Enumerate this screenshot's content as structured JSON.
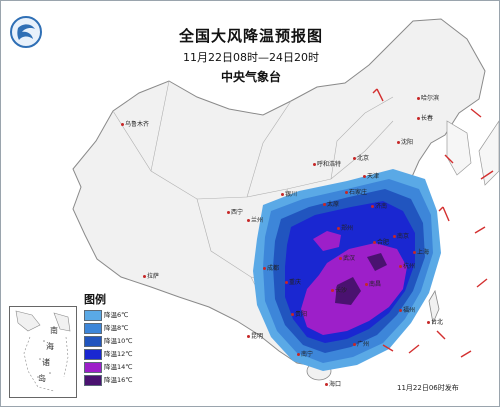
{
  "header": {
    "title": "全国大风降温预报图",
    "period": "11月22日08时—24日20时",
    "issuer": "中央气象台"
  },
  "logo": {
    "icon": "cma-logo-icon",
    "color": "#2f6fb5"
  },
  "map": {
    "icon": "china-base-map",
    "land_color": "#f2f2f2",
    "sea_color": "#ffffff",
    "cities": [
      "乌鲁木齐",
      "哈尔滨",
      "长春",
      "沈阳",
      "北京",
      "天津",
      "呼和浩特",
      "银川",
      "石家庄",
      "太原",
      "济南",
      "西宁",
      "兰州",
      "郑州",
      "拉萨",
      "成都",
      "重庆",
      "武汉",
      "合肥",
      "南京",
      "上海",
      "杭州",
      "长沙",
      "南昌",
      "贵阳",
      "昆明",
      "福州",
      "台北",
      "南宁",
      "广州",
      "海口"
    ],
    "wind_barbs": "red wind arrows"
  },
  "legend": {
    "title": "图例",
    "items": [
      {
        "label": "降温6℃",
        "color": "#5aa9e6"
      },
      {
        "label": "降温8℃",
        "color": "#3d86d9"
      },
      {
        "label": "降温10℃",
        "color": "#2155bf"
      },
      {
        "label": "降温12℃",
        "color": "#1a27d1"
      },
      {
        "label": "降温14℃",
        "color": "#9d1fc9"
      },
      {
        "label": "降温16℃",
        "color": "#4a1270"
      }
    ]
  },
  "inset": {
    "labels": [
      "南",
      "海",
      "诸",
      "岛"
    ]
  },
  "footer": {
    "issued": "11月22日06时发布"
  }
}
